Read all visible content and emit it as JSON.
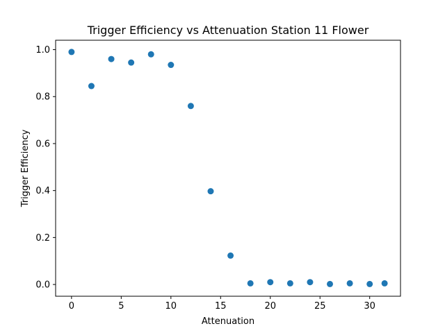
{
  "chart_data": {
    "type": "scatter",
    "title": "Trigger Efficiency vs Attenuation Station 11 Flower",
    "xlabel": "Attenuation",
    "ylabel": "Trigger Efficiency",
    "xlim": [
      -1.6,
      33.1
    ],
    "ylim": [
      -0.05,
      1.04
    ],
    "xticks": [
      0,
      5,
      10,
      15,
      20,
      25,
      30
    ],
    "yticks": [
      0.0,
      0.2,
      0.4,
      0.6,
      0.8,
      1.0
    ],
    "xtick_labels": [
      "0",
      "5",
      "10",
      "15",
      "20",
      "25",
      "30"
    ],
    "ytick_labels": [
      "0.0",
      "0.2",
      "0.4",
      "0.6",
      "0.8",
      "1.0"
    ],
    "grid": false,
    "marker_color": "#1f77b4",
    "series": [
      {
        "x": [
          0,
          2,
          4,
          6,
          8,
          10,
          12,
          14,
          16,
          18,
          20,
          22,
          24,
          26,
          28,
          30,
          31.5
        ],
        "y": [
          0.99,
          0.845,
          0.96,
          0.945,
          0.98,
          0.935,
          0.76,
          0.397,
          0.123,
          0.005,
          0.01,
          0.005,
          0.01,
          0.002,
          0.005,
          0.002,
          0.005
        ]
      }
    ]
  }
}
